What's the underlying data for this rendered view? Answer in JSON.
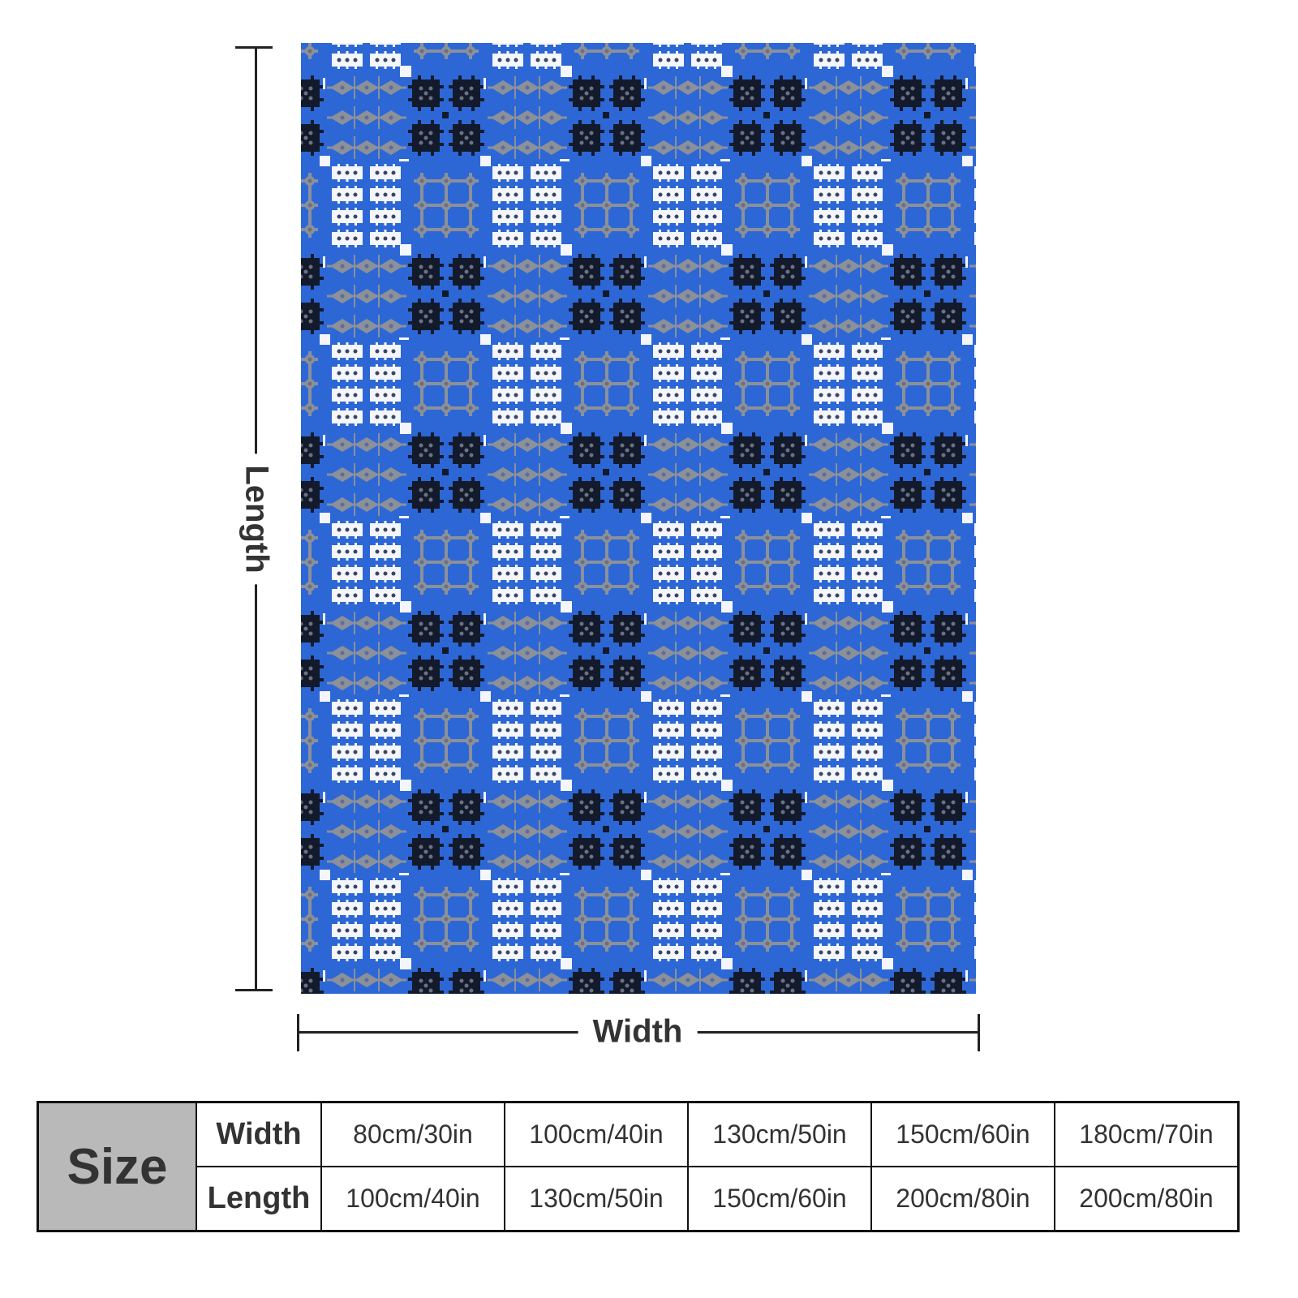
{
  "product_image": {
    "pattern_colors": {
      "background": "#2d67d6",
      "gray": "#8b9099",
      "dark": "#121a2c",
      "white": "#f4f6fb"
    }
  },
  "dimensions": {
    "length_label": "Length",
    "width_label": "Width"
  },
  "size_table": {
    "title": "Size",
    "rows": [
      {
        "label": "Width",
        "values": [
          "80cm/30in",
          "100cm/40in",
          "130cm/50in",
          "150cm/60in",
          "180cm/70in"
        ]
      },
      {
        "label": "Length",
        "values": [
          "100cm/40in",
          "130cm/50in",
          "150cm/60in",
          "200cm/80in",
          "200cm/80in"
        ]
      }
    ]
  }
}
